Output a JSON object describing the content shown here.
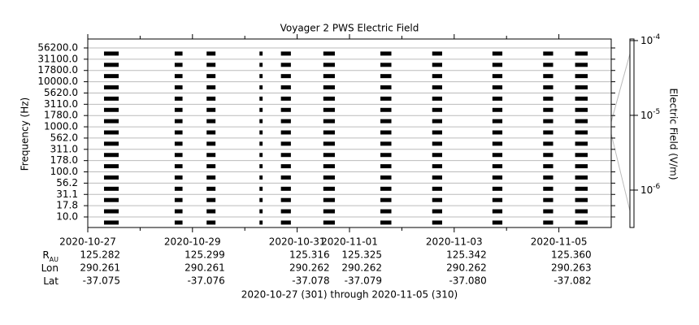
{
  "chart_data": {
    "type": "spectrogram",
    "title": "Voyager 2 PWS Electric Field",
    "ylabel": "Frequency (Hz)",
    "categories": [
      "56200.0",
      "31100.0",
      "17800.0",
      "10000.0",
      "5620.0",
      "3110.0",
      "1780.0",
      "1000.0",
      "562.0",
      "311.0",
      "178.0",
      "100.0",
      "56.2",
      "31.1",
      "17.8",
      "10.0"
    ],
    "xlim": [
      301,
      311
    ],
    "xticks": [
      {
        "value": 301,
        "label": "2020-10-27"
      },
      {
        "value": 303,
        "label": "2020-10-29"
      },
      {
        "value": 305,
        "label": "2020-10-31"
      },
      {
        "value": 306,
        "label": "2020-11-01"
      },
      {
        "value": 308,
        "label": "2020-11-03"
      },
      {
        "value": 310,
        "label": "2020-11-05"
      }
    ],
    "xminor": [
      302,
      304,
      307,
      309
    ],
    "passes": [
      {
        "start": 301.31,
        "end": 301.59
      },
      {
        "start": 302.66,
        "end": 302.81
      },
      {
        "start": 303.27,
        "end": 303.44
      },
      {
        "start": 304.28,
        "end": 304.34
      },
      {
        "start": 304.69,
        "end": 304.88
      },
      {
        "start": 305.5,
        "end": 305.72
      },
      {
        "start": 306.59,
        "end": 306.8
      },
      {
        "start": 307.58,
        "end": 307.77
      },
      {
        "start": 308.73,
        "end": 308.92
      },
      {
        "start": 309.7,
        "end": 309.89
      },
      {
        "start": 310.31,
        "end": 310.55
      }
    ],
    "color": "#000000",
    "grid": true,
    "colorbar": {
      "label": "Electric Field (V/m)",
      "log": true,
      "lim": [
        3.16e-07,
        0.000105
      ],
      "ticks": [
        {
          "value": 0.0001,
          "label": "10",
          "exponent": "-4"
        },
        {
          "value": 1e-05,
          "label": "10",
          "exponent": "-5"
        },
        {
          "value": 1e-06,
          "label": "10",
          "exponent": "-6"
        }
      ]
    },
    "ephemeris": [
      {
        "label": "R",
        "label_sub": "AU",
        "values": [
          "125.282",
          "125.299",
          "125.316",
          "125.325",
          "125.342",
          "125.360"
        ]
      },
      {
        "label": "Lon",
        "values": [
          "290.261",
          "290.261",
          "290.262",
          "290.262",
          "290.262",
          "290.263"
        ]
      },
      {
        "label": "Lat",
        "values": [
          "-37.075",
          "-37.076",
          "-37.078",
          "-37.079",
          "-37.080",
          "-37.082"
        ]
      }
    ],
    "footer": "2020-10-27 (301) through 2020-11-05 (310)"
  }
}
